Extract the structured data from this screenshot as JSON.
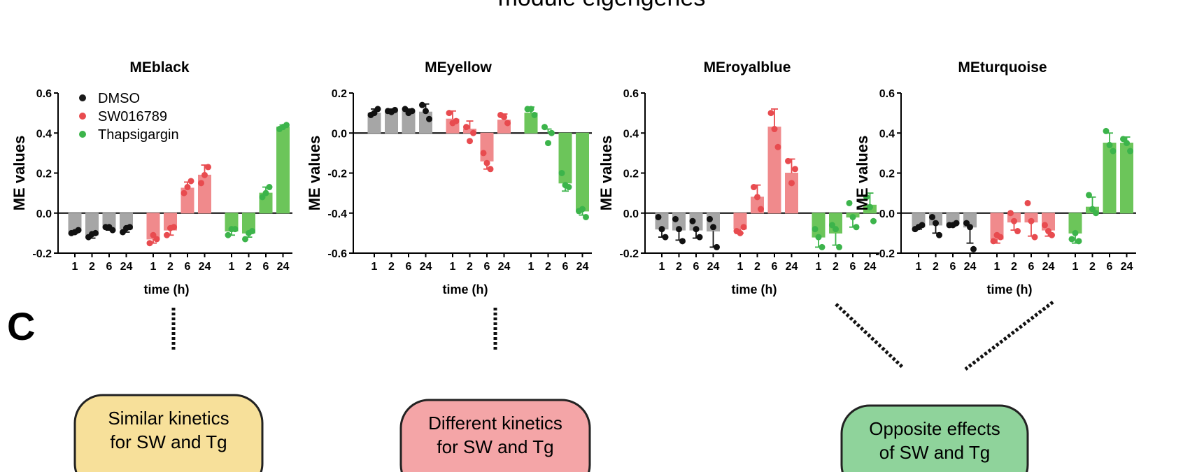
{
  "figure": {
    "supertitle": "module eigengenes",
    "panel_letter": "C",
    "legend": [
      {
        "label": "DMSO",
        "color": "#1a1a1a"
      },
      {
        "label": "SW016789",
        "color": "#e84b4f"
      },
      {
        "label": "Thapsigargin",
        "color": "#3cb44b"
      }
    ],
    "colors": {
      "DMSO_bar": "#a6a6a6",
      "DMSO_point": "#111111",
      "SW016789_bar": "#f08a8c",
      "SW016789_point": "#e84b4f",
      "Thapsigargin_bar": "#6cc55a",
      "Thapsigargin_point": "#3cb44b"
    },
    "callouts": [
      {
        "text_line1": "Similar kinetics",
        "text_line2": "for SW and Tg",
        "fill": "#f7e09a"
      },
      {
        "text_line1": "Different kinetics",
        "text_line2": "for SW and Tg",
        "fill": "#f4a5a7"
      },
      {
        "text_line1": "Opposite effects",
        "text_line2": "of SW and Tg",
        "fill": "#8fd39b"
      }
    ]
  },
  "chart_data": [
    {
      "type": "bar",
      "title": "MEblack",
      "xlabel": "time (h)",
      "ylabel": "ME values",
      "ylim": [
        -0.2,
        0.6
      ],
      "yticks": [
        -0.2,
        0.0,
        0.2,
        0.4,
        0.6
      ],
      "ytick_labels": [
        "-0.2",
        "0.0",
        "0.2",
        "0.4",
        "0.6"
      ],
      "categories": [
        "1",
        "2",
        "6",
        "24"
      ],
      "series": [
        {
          "name": "DMSO",
          "values": [
            -0.09,
            -0.11,
            -0.075,
            -0.08
          ],
          "err": [
            0.01,
            0.015,
            0.01,
            0.015
          ],
          "points": [
            [
              -0.1,
              -0.085,
              -0.095
            ],
            [
              -0.12,
              -0.1,
              -0.105
            ],
            [
              -0.07,
              -0.085,
              -0.07
            ],
            [
              -0.095,
              -0.07,
              -0.075
            ]
          ]
        },
        {
          "name": "SW016789",
          "values": [
            -0.13,
            -0.085,
            0.125,
            0.19
          ],
          "err": [
            0.02,
            0.025,
            0.03,
            0.05
          ],
          "points": [
            [
              -0.15,
              -0.13,
              -0.11
            ],
            [
              -0.11,
              -0.07,
              -0.075
            ],
            [
              0.1,
              0.16,
              0.13
            ],
            [
              0.15,
              0.23,
              0.19
            ]
          ]
        },
        {
          "name": "Thapsigargin",
          "values": [
            -0.09,
            -0.1,
            0.1,
            0.43
          ],
          "err": [
            0.02,
            0.02,
            0.03,
            0.01
          ],
          "points": [
            [
              -0.11,
              -0.08,
              -0.08
            ],
            [
              -0.13,
              -0.09,
              -0.1
            ],
            [
              0.08,
              0.13,
              0.1
            ],
            [
              0.42,
              0.44,
              0.43
            ]
          ]
        }
      ]
    },
    {
      "type": "bar",
      "title": "MEyellow",
      "xlabel": "time (h)",
      "ylabel": "ME values",
      "ylim": [
        -0.6,
        0.2
      ],
      "yticks": [
        -0.6,
        -0.4,
        -0.2,
        0.0,
        0.2
      ],
      "ytick_labels": [
        "-0.6",
        "-0.4",
        "-0.2",
        "0.0",
        "0.2"
      ],
      "categories": [
        "1",
        "2",
        "6",
        "24"
      ],
      "series": [
        {
          "name": "DMSO",
          "values": [
            0.1,
            0.11,
            0.11,
            0.105
          ],
          "err": [
            0.02,
            0.01,
            0.01,
            0.04
          ],
          "points": [
            [
              0.09,
              0.12,
              0.1
            ],
            [
              0.11,
              0.115,
              0.105
            ],
            [
              0.12,
              0.11,
              0.1
            ],
            [
              0.14,
              0.07,
              0.11
            ]
          ]
        },
        {
          "name": "SW016789",
          "values": [
            0.07,
            0.02,
            -0.14,
            0.065
          ],
          "err": [
            0.04,
            0.04,
            0.04,
            0.03
          ],
          "points": [
            [
              0.1,
              0.06,
              0.05
            ],
            [
              0.03,
              0.0,
              -0.04
            ],
            [
              -0.1,
              -0.18,
              -0.15
            ],
            [
              0.09,
              0.05,
              0.08
            ]
          ]
        },
        {
          "name": "Thapsigargin",
          "values": [
            0.1,
            0.0,
            -0.25,
            -0.39
          ],
          "err": [
            0.03,
            0.02,
            0.04,
            0.02
          ],
          "points": [
            [
              0.12,
              0.09,
              0.12
            ],
            [
              0.03,
              0.0,
              -0.05
            ],
            [
              -0.2,
              -0.27,
              -0.26
            ],
            [
              -0.39,
              -0.42,
              -0.38
            ]
          ]
        }
      ]
    },
    {
      "type": "bar",
      "title": "MEroyalblue",
      "xlabel": "time (h)",
      "ylabel": "ME values",
      "ylim": [
        -0.2,
        0.6
      ],
      "yticks": [
        -0.2,
        0.0,
        0.2,
        0.4,
        0.6
      ],
      "ytick_labels": [
        "-0.2",
        "0.0",
        "0.2",
        "0.4",
        "0.6"
      ],
      "categories": [
        "1",
        "2",
        "6",
        "24"
      ],
      "series": [
        {
          "name": "DMSO",
          "values": [
            -0.08,
            -0.085,
            -0.085,
            -0.09
          ],
          "err": [
            0.04,
            0.05,
            0.04,
            0.08
          ],
          "points": [
            [
              -0.02,
              -0.12,
              -0.08
            ],
            [
              -0.03,
              -0.14,
              -0.08
            ],
            [
              -0.04,
              -0.12,
              -0.08
            ],
            [
              -0.03,
              -0.17,
              -0.07
            ]
          ]
        },
        {
          "name": "SW016789",
          "values": [
            -0.08,
            0.08,
            0.43,
            0.2
          ],
          "err": [
            0.02,
            0.06,
            0.09,
            0.07
          ],
          "points": [
            [
              -0.09,
              -0.07,
              -0.1
            ],
            [
              0.13,
              0.02,
              0.08
            ],
            [
              0.5,
              0.33,
              0.42
            ],
            [
              0.26,
              0.22,
              0.15
            ]
          ]
        },
        {
          "name": "Thapsigargin",
          "values": [
            -0.12,
            -0.1,
            -0.02,
            0.04
          ],
          "err": [
            0.05,
            0.06,
            0.05,
            0.06
          ],
          "points": [
            [
              -0.08,
              -0.17,
              -0.12
            ],
            [
              -0.06,
              -0.17,
              -0.08
            ],
            [
              0.05,
              -0.07,
              -0.02
            ],
            [
              0.08,
              -0.04,
              0.03
            ]
          ]
        }
      ]
    },
    {
      "type": "bar",
      "title": "MEturquoise",
      "xlabel": "time (h)",
      "ylabel": "ME values",
      "ylim": [
        -0.2,
        0.6
      ],
      "yticks": [
        -0.2,
        0.0,
        0.2,
        0.4,
        0.6
      ],
      "ytick_labels": [
        "-0.2",
        "0.0",
        "0.2",
        "0.4",
        "0.6"
      ],
      "categories": [
        "1",
        "2",
        "6",
        "24"
      ],
      "series": [
        {
          "name": "DMSO",
          "values": [
            -0.07,
            -0.06,
            -0.055,
            -0.07
          ],
          "err": [
            0.01,
            0.04,
            0.01,
            0.08
          ],
          "points": [
            [
              -0.08,
              -0.06,
              -0.07
            ],
            [
              -0.02,
              -0.11,
              -0.05
            ],
            [
              -0.06,
              -0.05,
              -0.06
            ],
            [
              -0.05,
              -0.18,
              -0.07
            ]
          ]
        },
        {
          "name": "SW016789",
          "values": [
            -0.13,
            -0.045,
            -0.045,
            -0.085
          ],
          "err": [
            0.02,
            0.04,
            0.07,
            0.03
          ],
          "points": [
            [
              -0.14,
              -0.12,
              -0.11
            ],
            [
              0.0,
              -0.09,
              -0.04
            ],
            [
              0.05,
              -0.12,
              -0.04
            ],
            [
              -0.06,
              -0.11,
              -0.09
            ]
          ]
        },
        {
          "name": "Thapsigargin",
          "values": [
            -0.1,
            0.03,
            0.35,
            0.35
          ],
          "err": [
            0.05,
            0.05,
            0.05,
            0.03
          ],
          "points": [
            [
              -0.13,
              -0.14,
              -0.1
            ],
            [
              0.09,
              0.0,
              0.02
            ],
            [
              0.41,
              0.31,
              0.34
            ],
            [
              0.37,
              0.31,
              0.35
            ]
          ]
        }
      ]
    }
  ]
}
